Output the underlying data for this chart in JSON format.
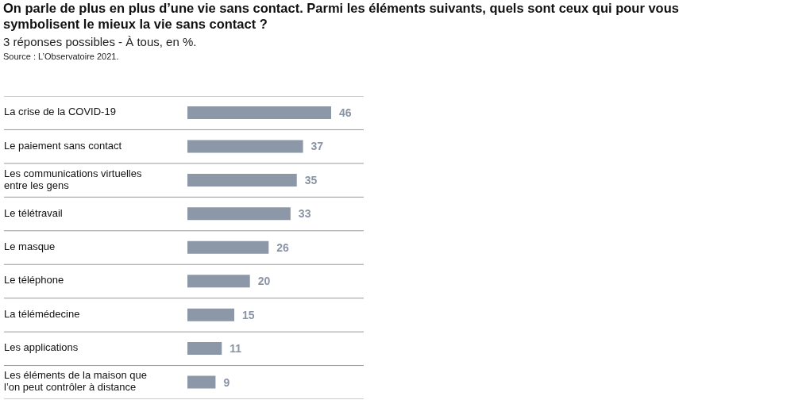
{
  "chart_data": {
    "type": "bar",
    "orientation": "horizontal",
    "title": "On parle de plus en plus d’une vie sans contact. Parmi les éléments suivants, quels sont ceux qui pour vous symbolisent le mieux la vie sans contact ?",
    "subtitle": "3 réponses possibles - À tous, en %.",
    "annotations": [
      "Source : L’Observatoire 2021."
    ],
    "categories": [
      "La crise de la COVID-19",
      "Le paiement sans contact",
      "Les communications virtuelles entre les gens",
      "Le télétravail",
      "Le masque",
      "Le téléphone",
      "La télémédecine",
      "Les applications",
      "Les éléments de la maison que l’on peut contrôler à distance"
    ],
    "values": [
      46,
      37,
      35,
      33,
      26,
      20,
      15,
      11,
      9
    ],
    "color": "#8c97a8",
    "data_labels": true,
    "grid": true
  }
}
